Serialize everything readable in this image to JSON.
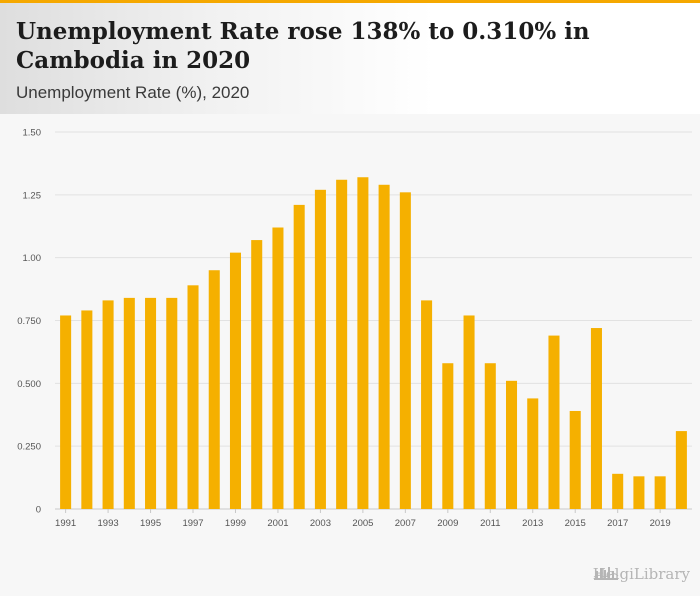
{
  "header": {
    "title": "Unemployment Rate rose 138% to 0.310% in Cambodia in 2020",
    "subtitle": "Unemployment Rate (%), 2020"
  },
  "watermark": {
    "text": "HelgiLibrary",
    "icon": "library-building-icon"
  },
  "colors": {
    "bar": "#f5b000",
    "accent": "#f5a800",
    "grid": "#e2e2e2"
  },
  "chart_data": {
    "type": "bar",
    "title": "Unemployment Rate (%), 2020",
    "xlabel": "",
    "ylabel": "",
    "ylim": [
      0,
      1.5
    ],
    "y_ticks": [
      {
        "value": 0,
        "label": "0"
      },
      {
        "value": 0.25,
        "label": "0.250"
      },
      {
        "value": 0.5,
        "label": "0.500"
      },
      {
        "value": 0.75,
        "label": "0.750"
      },
      {
        "value": 1.0,
        "label": "1.00"
      },
      {
        "value": 1.25,
        "label": "1.25"
      },
      {
        "value": 1.5,
        "label": "1.50"
      }
    ],
    "x_tick_labels": [
      "1991",
      "1993",
      "1995",
      "1997",
      "1999",
      "2001",
      "2003",
      "2005",
      "2007",
      "2009",
      "2011",
      "2013",
      "2015",
      "2017",
      "2019"
    ],
    "categories": [
      "1991",
      "1992",
      "1993",
      "1994",
      "1995",
      "1996",
      "1997",
      "1998",
      "1999",
      "2000",
      "2001",
      "2002",
      "2003",
      "2004",
      "2005",
      "2006",
      "2007",
      "2008",
      "2009",
      "2010",
      "2011",
      "2012",
      "2013",
      "2014",
      "2015",
      "2016",
      "2017",
      "2018",
      "2019",
      "2020"
    ],
    "values": [
      0.77,
      0.79,
      0.83,
      0.84,
      0.84,
      0.84,
      0.89,
      0.95,
      1.02,
      1.07,
      1.12,
      1.21,
      1.27,
      1.31,
      1.32,
      1.29,
      1.26,
      0.83,
      0.58,
      0.77,
      0.58,
      0.51,
      0.44,
      0.69,
      0.39,
      0.72,
      0.14,
      0.13,
      0.13,
      0.31
    ]
  }
}
